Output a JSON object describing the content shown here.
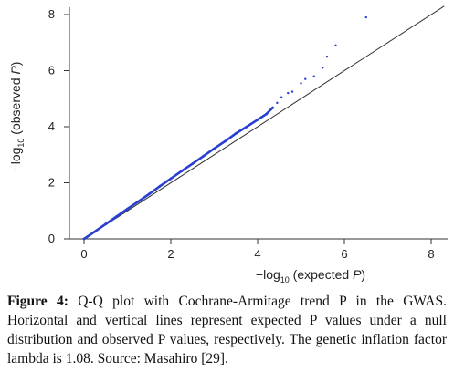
{
  "chart_data": {
    "type": "scatter",
    "xlabel_prefix": "−log",
    "xlabel_sub": "10",
    "xlabel_suffix": " (expected ",
    "xlabel_var": "P",
    "xlabel_close": ")",
    "ylabel_prefix": "−log",
    "ylabel_sub": "10",
    "ylabel_suffix": " (observed ",
    "ylabel_var": "P",
    "ylabel_close": ")",
    "xlim": [
      0,
      8.3
    ],
    "ylim": [
      0,
      8.3
    ],
    "x_ticks": [
      0,
      2,
      4,
      6,
      8
    ],
    "y_ticks": [
      0,
      2,
      4,
      6,
      8
    ],
    "reference_line": "y = x",
    "grid": false,
    "point_color": "#2a3fd1",
    "line_color": "#333333",
    "points": [
      [
        0.0,
        0.0
      ],
      [
        0.25,
        0.26
      ],
      [
        0.5,
        0.53
      ],
      [
        0.75,
        0.8
      ],
      [
        1.0,
        1.07
      ],
      [
        1.25,
        1.33
      ],
      [
        1.5,
        1.6
      ],
      [
        1.75,
        1.88
      ],
      [
        2.0,
        2.15
      ],
      [
        2.25,
        2.42
      ],
      [
        2.5,
        2.68
      ],
      [
        2.75,
        2.95
      ],
      [
        3.0,
        3.22
      ],
      [
        3.25,
        3.48
      ],
      [
        3.5,
        3.76
      ],
      [
        3.75,
        4.0
      ],
      [
        4.0,
        4.25
      ],
      [
        4.2,
        4.45
      ],
      [
        4.35,
        4.68
      ],
      [
        4.45,
        4.85
      ],
      [
        4.55,
        5.05
      ],
      [
        4.7,
        5.2
      ],
      [
        4.8,
        5.25
      ],
      [
        5.0,
        5.55
      ],
      [
        5.1,
        5.7
      ],
      [
        5.3,
        5.8
      ],
      [
        5.5,
        6.1
      ],
      [
        5.6,
        6.5
      ],
      [
        5.8,
        6.9
      ],
      [
        6.5,
        7.9
      ]
    ]
  },
  "caption": {
    "label": "Figure 4:",
    "text": " Q-Q plot with Cochrane-Armitage trend P in the GWAS. Horizontal and vertical lines represent expected P values under a null distribution and observed P values, respectively. The genetic inflation factor lambda is 1.08. Source: Masahiro [29]."
  }
}
